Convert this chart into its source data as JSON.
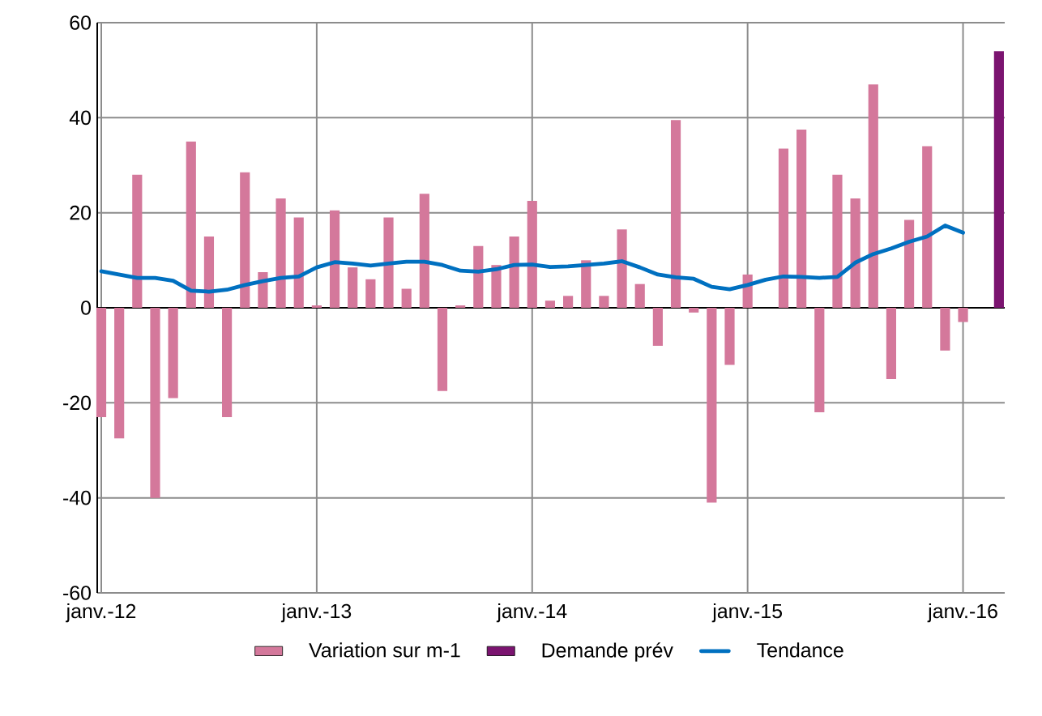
{
  "chart_data": {
    "type": "bar",
    "x": [
      "2012-01",
      "2012-02",
      "2012-03",
      "2012-04",
      "2012-05",
      "2012-06",
      "2012-07",
      "2012-08",
      "2012-09",
      "2012-10",
      "2012-11",
      "2012-12",
      "2013-01",
      "2013-02",
      "2013-03",
      "2013-04",
      "2013-05",
      "2013-06",
      "2013-07",
      "2013-08",
      "2013-09",
      "2013-10",
      "2013-11",
      "2013-12",
      "2014-01",
      "2014-02",
      "2014-03",
      "2014-04",
      "2014-05",
      "2014-06",
      "2014-07",
      "2014-08",
      "2014-09",
      "2014-10",
      "2014-11",
      "2014-12",
      "2015-01",
      "2015-02",
      "2015-03",
      "2015-04",
      "2015-05",
      "2015-06",
      "2015-07",
      "2015-08",
      "2015-09",
      "2015-10",
      "2015-11",
      "2015-12",
      "2016-01"
    ],
    "series": [
      {
        "name": "Variation sur m-1",
        "color": "#d4789b",
        "values": [
          -23,
          -27.5,
          28,
          -40,
          -19,
          35,
          15,
          -23,
          28.5,
          7.5,
          23,
          19,
          0.5,
          20.5,
          8.5,
          6,
          19,
          4,
          24,
          -17.5,
          0.5,
          13,
          9,
          15,
          22.5,
          1.5,
          2.5,
          10,
          2.5,
          16.5,
          5,
          -8,
          39.5,
          -1,
          -41,
          -12,
          7,
          0,
          33.5,
          37.5,
          -22,
          28,
          23,
          47,
          -15,
          18.5,
          34,
          -9,
          -3
        ]
      },
      {
        "name": "Demande prév",
        "color": "#7b1470",
        "x": [
          "2016-03"
        ],
        "values": [
          54
        ]
      },
      {
        "name": "Tendance",
        "type": "line",
        "color": "#0070c0",
        "values": [
          7.7,
          7,
          6.3,
          6.3,
          5.7,
          3.6,
          3.4,
          3.8,
          4.8,
          5.6,
          6.3,
          6.6,
          8.5,
          9.6,
          9.3,
          8.9,
          9.3,
          9.7,
          9.7,
          9,
          7.8,
          7.6,
          8.1,
          9,
          9.1,
          8.6,
          8.7,
          9,
          9.3,
          9.8,
          8.5,
          7,
          6.4,
          6.1,
          4.4,
          3.9,
          4.8,
          5.9,
          6.6,
          6.5,
          6.3,
          6.5,
          9.5,
          11.3,
          12.5,
          13.9,
          15,
          17.3,
          15.8
        ]
      }
    ],
    "xlim": [
      "2011-12-25",
      "2016-03-11"
    ],
    "xticks": [
      {
        "value": "2012-01",
        "label": "janv.-12"
      },
      {
        "value": "2013-01",
        "label": "janv.-13"
      },
      {
        "value": "2014-01",
        "label": "janv.-14"
      },
      {
        "value": "2015-01",
        "label": "janv.-15"
      },
      {
        "value": "2016-01",
        "label": "janv.-16"
      }
    ],
    "ylim": [
      -60,
      60
    ],
    "yticks": [
      -60,
      -40,
      -20,
      0,
      20,
      40,
      60
    ],
    "grid": true,
    "legend": "bottom"
  }
}
